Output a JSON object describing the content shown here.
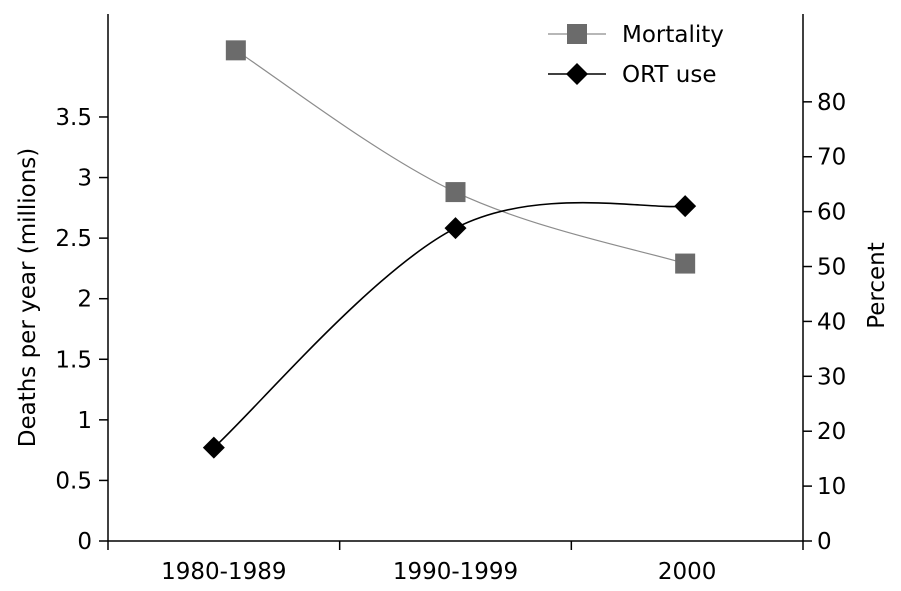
{
  "chart_data": {
    "type": "line",
    "categories": [
      "1980-1989",
      "1990-1999",
      "2000"
    ],
    "series": [
      {
        "name": "Mortality",
        "axis": "left",
        "values": [
          4.05,
          2.88,
          2.29
        ],
        "color": "#6b6b6b",
        "line_color": "#8c8c8c",
        "marker": "square"
      },
      {
        "name": "ORT use",
        "axis": "right",
        "values": [
          17,
          57,
          61
        ],
        "color": "#000000",
        "line_color": "#000000",
        "marker": "diamond"
      }
    ],
    "ylabel": "Deaths per year (millions)",
    "ylabel_right": "Percent",
    "ylim": [
      0,
      4.35
    ],
    "ylim_right": [
      0,
      96
    ],
    "yticks": [
      "0",
      "0.5",
      "1",
      "1.5",
      "2",
      "2.5",
      "3",
      "3.5"
    ],
    "yticks_values": [
      0,
      0.5,
      1,
      1.5,
      2,
      2.5,
      3,
      3.5
    ],
    "yticks_right": [
      "0",
      "10",
      "20",
      "30",
      "40",
      "50",
      "60",
      "70",
      "80"
    ],
    "yticks_right_values": [
      0,
      10,
      20,
      30,
      40,
      50,
      60,
      70,
      80
    ],
    "grid": false,
    "legend_position": "top-right"
  }
}
